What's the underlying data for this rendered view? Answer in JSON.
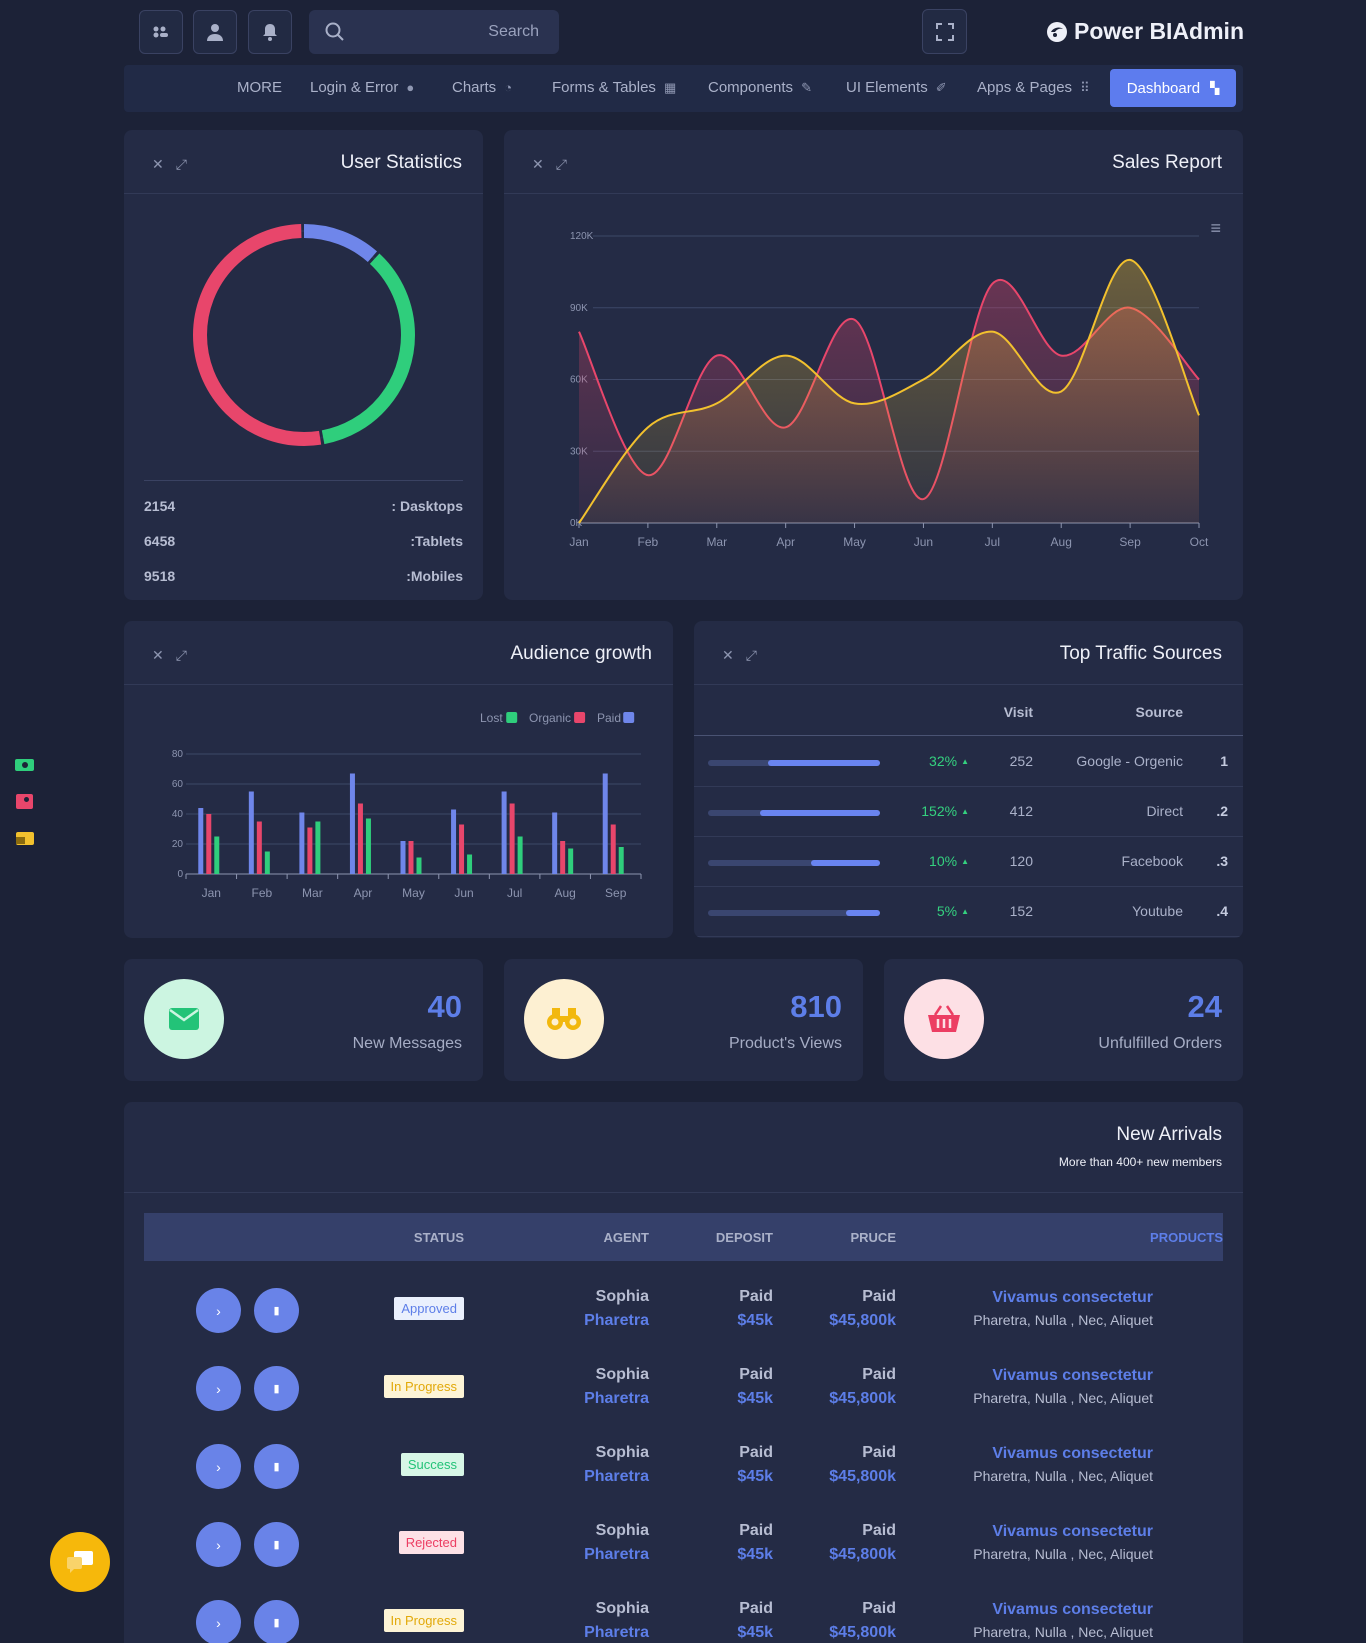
{
  "header": {
    "search_placeholder": "Search",
    "brand": "Power BIAdmin"
  },
  "nav": {
    "items": [
      "MORE",
      "Login & Error",
      "Charts",
      "Forms & Tables",
      "Components",
      "UI Elements",
      "Apps & Pages"
    ],
    "active": "Dashboard"
  },
  "user_stats": {
    "title": "User Statistics",
    "items": [
      {
        "value": "2154",
        "label": ": Dasktops"
      },
      {
        "value": "6458",
        "label": ":Tablets"
      },
      {
        "value": "9518",
        "label": ":Mobiles"
      }
    ],
    "colors": {
      "desktops": "#6f86ea",
      "tablets": "#2fce7c",
      "mobiles": "#e8466b"
    }
  },
  "sales": {
    "title": "Sales Report",
    "chart_data": {
      "type": "area",
      "categories": [
        "Jan",
        "Feb",
        "Mar",
        "Apr",
        "May",
        "Jun",
        "Jul",
        "Aug",
        "Sep",
        "Oct"
      ],
      "yticks": [
        "120K",
        "90K",
        "60K",
        "30K",
        "0K"
      ],
      "ylim": [
        0,
        120000
      ],
      "series": [
        {
          "color": "#e8466b",
          "values": [
            80000,
            20000,
            70000,
            40000,
            85000,
            10000,
            100000,
            70000,
            90000,
            60000
          ]
        },
        {
          "color": "#f2c12e",
          "values": [
            0,
            40000,
            50000,
            70000,
            50000,
            60000,
            80000,
            55000,
            110000,
            45000
          ]
        }
      ]
    }
  },
  "audience": {
    "title": "Audience growth",
    "chart_data": {
      "type": "bar",
      "categories": [
        "Jan",
        "Feb",
        "Mar",
        "Apr",
        "May",
        "Jun",
        "Jul",
        "Aug",
        "Sep"
      ],
      "yticks": [
        "80",
        "60",
        "40",
        "20",
        "0"
      ],
      "ylim": [
        0,
        80
      ],
      "series": [
        {
          "name": "Paid",
          "color": "#6f86ea",
          "values": [
            44,
            55,
            41,
            67,
            22,
            43,
            55,
            41,
            67
          ]
        },
        {
          "name": "Organic",
          "color": "#e8466b",
          "values": [
            40,
            35,
            31,
            47,
            22,
            33,
            47,
            22,
            33
          ]
        },
        {
          "name": "Lost",
          "color": "#2fce7c",
          "values": [
            25,
            15,
            35,
            37,
            11,
            13,
            25,
            17,
            18
          ]
        }
      ],
      "legend": [
        "Lost",
        "Organic",
        "Paid"
      ]
    }
  },
  "traffic": {
    "title": "Top Traffic Sources",
    "col_visit": "Visit",
    "col_source": "Source",
    "rows": [
      {
        "pct": "32%",
        "fill": 0.65,
        "visit": "252",
        "source": "Google - Orgenic",
        "idx": "1"
      },
      {
        "pct": "152%",
        "fill": 0.7,
        "visit": "412",
        "source": "Direct",
        "idx": ".2"
      },
      {
        "pct": "10%",
        "fill": 0.4,
        "visit": "120",
        "source": "Facebook",
        "idx": ".3"
      },
      {
        "pct": "5%",
        "fill": 0.2,
        "visit": "152",
        "source": "Youtube",
        "idx": ".4"
      }
    ]
  },
  "kpis": [
    {
      "value": "40",
      "label": "New Messages",
      "bg": "#ccf5e1",
      "fg": "#23c378"
    },
    {
      "value": "810",
      "label": "Product's Views",
      "bg": "#fdf0d2",
      "fg": "#f2b80e"
    },
    {
      "value": "24",
      "label": "Unfulfilled Orders",
      "bg": "#fde0e5",
      "fg": "#ec3e63"
    }
  ],
  "arrivals": {
    "title": "New Arrivals",
    "subtitle": "More than 400+ new members",
    "columns": {
      "status": "STATUS",
      "agent": "AGENT",
      "deposit": "DEPOSIT",
      "price": "PRUCE",
      "products": "PRODUCTS"
    },
    "rows": [
      {
        "status": "Approved",
        "agent": [
          "Sophia",
          "Pharetra"
        ],
        "deposit": [
          "Paid",
          "$45k"
        ],
        "price": [
          "Paid",
          "$45,800k"
        ],
        "product": [
          "Vivamus consectetur",
          "Pharetra, Nulla , Nec, Aliquet"
        ]
      },
      {
        "status": "In Progress",
        "agent": [
          "Sophia",
          "Pharetra"
        ],
        "deposit": [
          "Paid",
          "$45k"
        ],
        "price": [
          "Paid",
          "$45,800k"
        ],
        "product": [
          "Vivamus consectetur",
          "Pharetra, Nulla , Nec, Aliquet"
        ]
      },
      {
        "status": "Success",
        "agent": [
          "Sophia",
          "Pharetra"
        ],
        "deposit": [
          "Paid",
          "$45k"
        ],
        "price": [
          "Paid",
          "$45,800k"
        ],
        "product": [
          "Vivamus consectetur",
          "Pharetra, Nulla , Nec, Aliquet"
        ]
      },
      {
        "status": "Rejected",
        "agent": [
          "Sophia",
          "Pharetra"
        ],
        "deposit": [
          "Paid",
          "$45k"
        ],
        "price": [
          "Paid",
          "$45,800k"
        ],
        "product": [
          "Vivamus consectetur",
          "Pharetra, Nulla , Nec, Aliquet"
        ]
      },
      {
        "status": "In Progress",
        "agent": [
          "Sophia",
          "Pharetra"
        ],
        "deposit": [
          "Paid",
          "$45k"
        ],
        "price": [
          "Paid",
          "$45,800k"
        ],
        "product": [
          "Vivamus consectetur",
          "Pharetra, Nulla , Nec, Aliquet"
        ]
      }
    ]
  }
}
